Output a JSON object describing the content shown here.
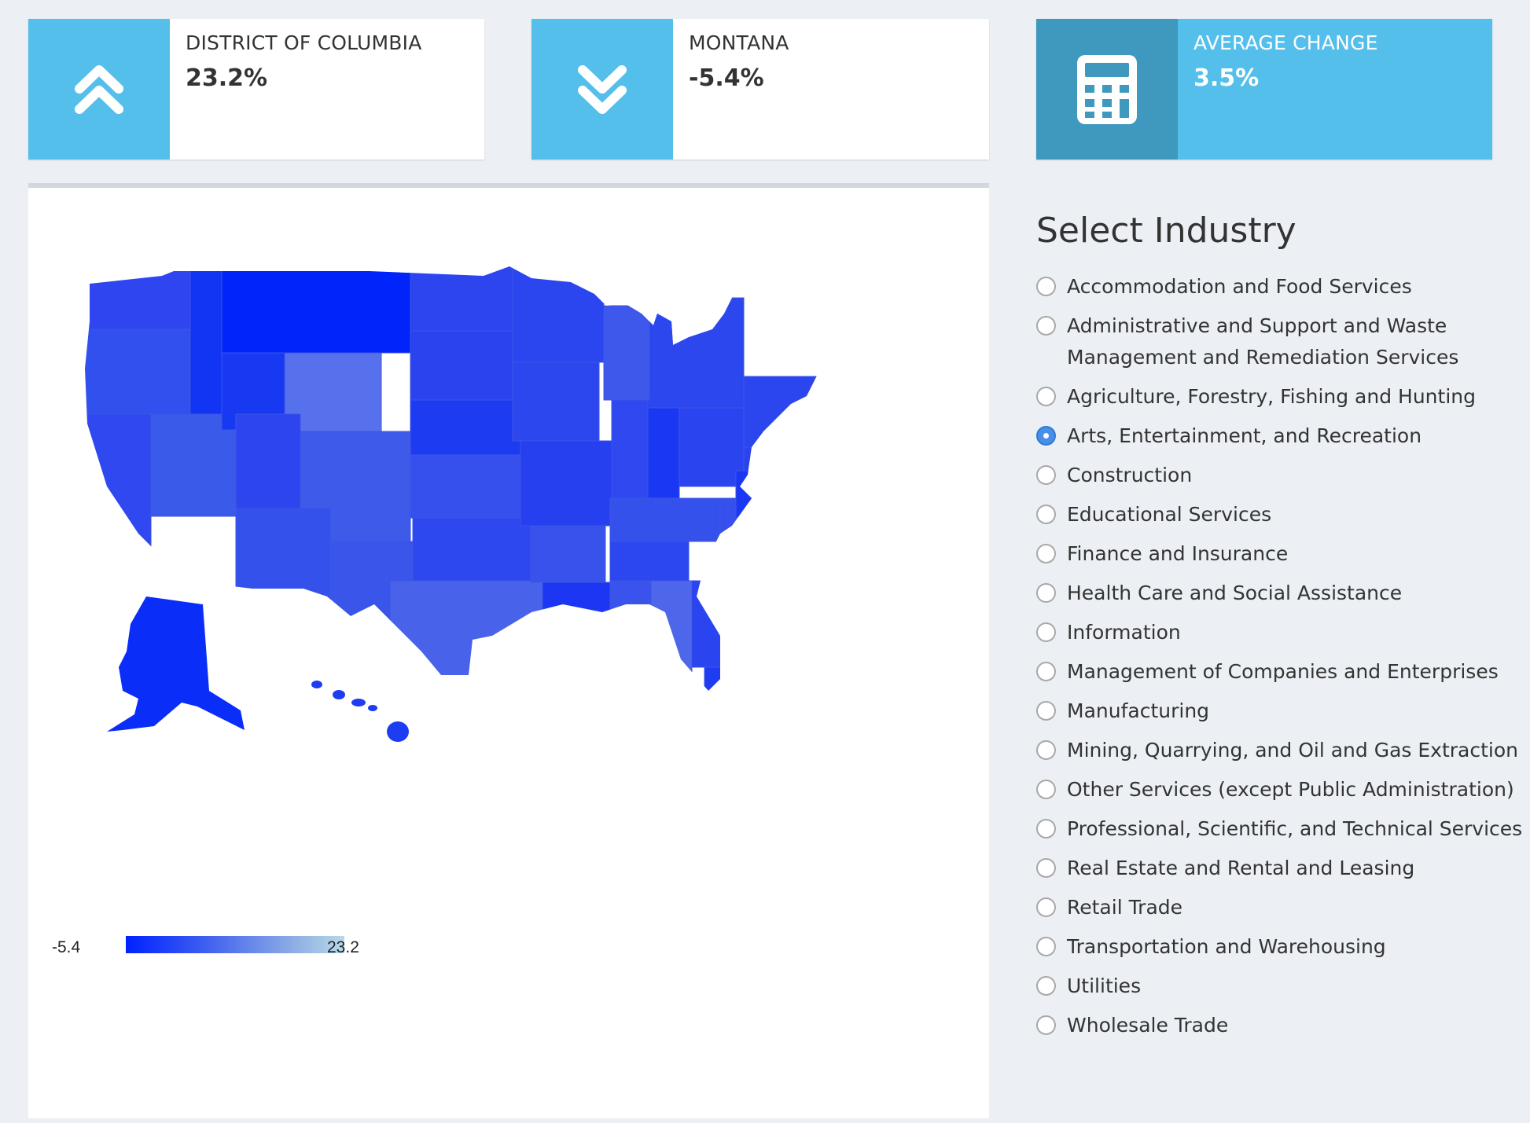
{
  "stats": {
    "top": {
      "label": "DISTRICT OF COLUMBIA",
      "value": "23.2%",
      "icon": "double-chevron-up-icon"
    },
    "bottom": {
      "label": "MONTANA",
      "value": "-5.4%",
      "icon": "double-chevron-down-icon"
    },
    "average": {
      "label": "AVERAGE CHANGE",
      "value": "3.5%",
      "icon": "calculator-icon"
    }
  },
  "map": {
    "legend": {
      "min": "-5.4",
      "max": "23.2",
      "color_low": "#0022ff",
      "color_high": "#b9d9e8"
    }
  },
  "industry": {
    "title": "Select Industry",
    "selected_index": 3,
    "options": [
      "Accommodation and Food Services",
      "Administrative and Support and Waste Management and Remediation Services",
      "Agriculture, Forestry, Fishing and Hunting",
      "Arts, Entertainment, and Recreation",
      "Construction",
      "Educational Services",
      "Finance and Insurance",
      "Health Care and Social Assistance",
      "Information",
      "Management of Companies and Enterprises",
      "Manufacturing",
      "Mining, Quarrying, and Oil and Gas Extraction",
      "Other Services (except Public Administration)",
      "Professional, Scientific, and Technical Services",
      "Real Estate and Rental and Leasing",
      "Retail Trade",
      "Transportation and Warehousing",
      "Utilities",
      "Wholesale Trade"
    ]
  },
  "colors": {
    "accent": "#55bfeb",
    "accent_dark": "#3f98bd",
    "radio_checked": "#4a8fe7"
  }
}
